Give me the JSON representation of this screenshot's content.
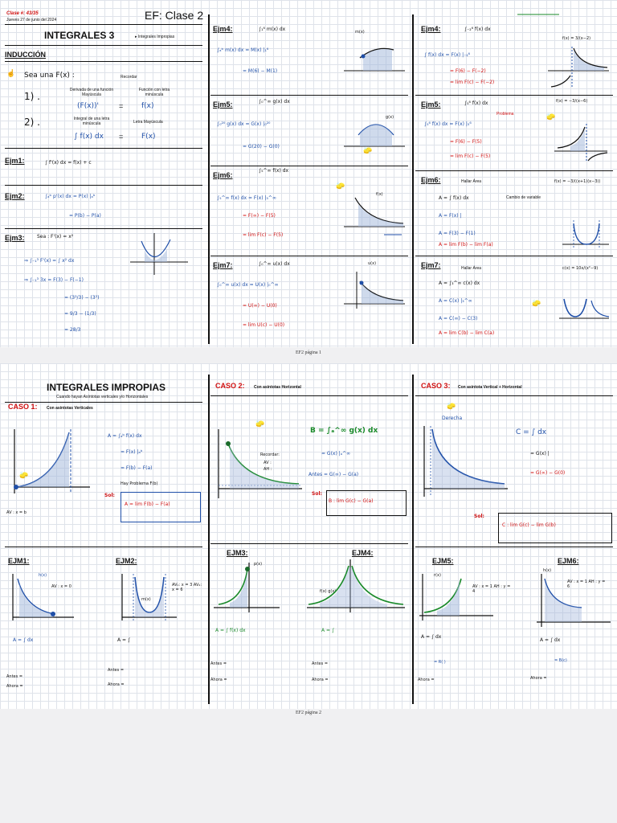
{
  "page1": {
    "clase_num": "Clase #: 43/35",
    "fecha": "Jueves 27 de junio del 2024",
    "title": "EF: Clase 2",
    "heading": "INTEGRALES 3",
    "bullet": "Integrales Impropias",
    "induccion": "INDUCCIÓN",
    "sea": "Sea una F(x) :",
    "recordar": "Recordar",
    "item1": "1) .",
    "item2": "2) .",
    "derivada_label": "Derivada de una función Mayúscula",
    "funcion_minus_label": "Función con letra minúscula",
    "integral_label": "Integral de una letra minúscula",
    "letra_may_label": "Letra Mayúscula",
    "expr_deriv": "(F(x))'",
    "expr_f": "f(x)",
    "expr_int": "∫ f(x) dx",
    "expr_F": "F(x)",
    "ejm1": "Ejm1:",
    "ejm1_expr": "∫ f'(x) dx  =  f(x) + c",
    "ejm2": "Ejm2:",
    "ejm2_expr": "∫ₐᵇ p'(x) dx  =  P(x) |ₐᵇ",
    "ejm2_res": "=  P(b) − P(a)",
    "ejm3": "Ejm3:",
    "ejm3_sea": "Sea : F'(x) = x²",
    "ejm3_l1": "⇒ ∫₋₁³ F'(x)  =  ∫ x² dx",
    "ejm3_l2": "⇒ ∫₋₁³ 3x  =  F(3) − F(−1)",
    "ejm3_l3": "=  (3³/3)  −  (3³)",
    "ejm3_l4": "=  9/3  −  (1/3)",
    "ejm3_l5": "=  28/3",
    "col2": {
      "ejm4": "Ejm4:",
      "ejm4_top": "∫₁⁶ m(x) dx",
      "ejm4_l1": "∫ₐᵇ m(x) dx =   M(x) |₁⁶",
      "ejm4_l2": "=   M(6)  −  M(1)",
      "ejm4_g": "m(x)",
      "ejm5": "Ejm5:",
      "ejm5_top": "∫₀^∞ g(x) dx",
      "ejm5_l1": "∫₀²⁰ g(x) dx =   G(x) |₀²⁰",
      "ejm5_l2": "=   G(20) − G(0)",
      "ejm5_g": "g(x)",
      "ejm6": "Ejm6:",
      "ejm6_top": "∫₅^∞ f(x) dx",
      "ejm6_l1": "∫₅^∞ f(x) dx =  F(x) |₅^∞",
      "ejm6_l2": "=  F(∞) − F(5)",
      "ejm6_l3": "=  lim F(c) − F(5)",
      "ejm6_g": "f(x)",
      "ejm7": "Ejm7:",
      "ejm7_top": "∫₀^∞ u(x) dx",
      "ejm7_l1": "∫₀^∞ u(x) dx =  U(x) |₀^∞",
      "ejm7_l2": "=  U(∞)  −  U(0)",
      "ejm7_l3": "=  lim U(c) − U(0)",
      "ejm7_g": "u(x)"
    },
    "col3": {
      "ejm4": "Ejm4:",
      "ejm4_top": "∫₋₂⁶ f(x) dx",
      "ejm4_f": "f(x) = 3/(x−2)",
      "ejm4_l1": "∫ f(x) dx =  F(x) |₋₂⁶",
      "ejm4_l2": "=  F(6) − F(−2)",
      "ejm4_l3": "=  lim F(c) − F(−2)",
      "ejm5": "Ejm5:",
      "ejm5_top": "∫₅⁶ f(x) dx",
      "ejm5_f": "f(x) = −3/(x−6)",
      "ejm5_note": "Problema",
      "ejm5_l1": "∫₅⁶ f(x) dx =  F(x) |₅⁶",
      "ejm5_l2": "=  F(6) − F(5)",
      "ejm5_l3": "=  lim F(c) − F(5)",
      "ejm6": "Ejm6:",
      "ejm6_hallar": "Hallar Área",
      "ejm6_f": "f(x) = −3/((x+1)(x−3))",
      "ejm6_cambio": "Cambio de variable",
      "ejm6_l1": "A = ∫ f(x) dx",
      "ejm6_l2": "A =  F(x) |",
      "ejm6_l3": "A =  F(3) − F(1)",
      "ejm6_l4": "A =  lim F(b) − lim F(a)",
      "ejm7": "Ejm7:",
      "ejm7_hallar": "Hallar Área",
      "ejm7_f": "c(x) = 10x/(x²−9)",
      "ejm7_l1": "A = ∫₃^∞ c(x) dx",
      "ejm7_l2": "A =  C(x) |₃^∞",
      "ejm7_l3": "A =  C(∞) − C(3)",
      "ejm7_l4": "A =  lim C(b) − lim C(a)"
    },
    "footer": "EF2 página 1"
  },
  "page2": {
    "heading": "INTEGRALES IMPROPIAS",
    "subheading": "Cuando hayan Asíntotas verticales y/o Horizontales",
    "caso1": "CASO 1:",
    "caso1_desc": "Con asíntotas Verticales",
    "caso1_l1": "A  =  ∫ₐᵇ f(x) dx",
    "caso1_l2": "=   F(x) |ₐᵇ",
    "caso1_l3": "=   F(b) − F(a)",
    "caso1_problema": "Hay Problema   F(b)",
    "caso1_sol": "Sol:",
    "caso1_res": "A = lim F(b) − F(a)",
    "caso1_av": "AV : x = b",
    "caso2": "CASO 2:",
    "caso2_desc": "Con asíntotas Horizontal",
    "caso2_main": "B = ∫ₐ^∞ g(x) dx",
    "caso2_rec": "Recordar:",
    "caso2_av": "AV :",
    "caso2_ah": "AH :",
    "caso2_l1": "=   G(x) |ₐ^∞",
    "caso2_antes": "Antes =   G(∞) − G(a)",
    "caso2_sol": "Sol:",
    "caso2_res": "B : lim G(c) − G(a)",
    "caso3": "CASO 3:",
    "caso3_desc": "Con asíntota Vertical + Horizontal",
    "caso3_derecha": "Derecha",
    "caso3_main": "C =  ∫        dx",
    "caso3_l1": "=   G(x) |",
    "caso3_l2": "=   G(∞) − G(0)",
    "caso3_sol": "Sol:",
    "caso3_res": "C :  lim G(c)  −  lim G(b)",
    "ejms": [
      {
        "label": "EJM1:",
        "f": "h(x)",
        "av": "AV : x = 0",
        "a": "A = ∫    dx",
        "antes": "Antes =",
        "ahora": "Ahora ="
      },
      {
        "label": "EJM2:",
        "f": "m(x)",
        "av": "AV₁: x = 3  AV₂: x = 6",
        "a": "A = ∫",
        "antes": "Antes =",
        "ahora": "Ahora ="
      },
      {
        "label": "EJM3:",
        "f": "p(x)",
        "av": "",
        "a": "A = ∫  f(x) dx",
        "antes": "Antes =",
        "ahora": "Ahora ="
      },
      {
        "label": "EJM4:",
        "f": "f(x)  g(x)",
        "av": "",
        "a": "A = ∫",
        "antes": "Antes =",
        "ahora": "Ahora ="
      },
      {
        "label": "EJM5:",
        "f": "r(x)",
        "av": "AV : x = 1  AH : y = 4",
        "a": "A = ∫     dx",
        "antes": "= R( )",
        "ahora": "Ahora ="
      },
      {
        "label": "EJM6:",
        "f": "h(x)",
        "av": "AV : x = 1  AH : y = 6",
        "a": "A = ∫     dx",
        "antes": "= B(c)",
        "ahora": "Ahora ="
      }
    ],
    "footer": "EF2 página 2"
  }
}
